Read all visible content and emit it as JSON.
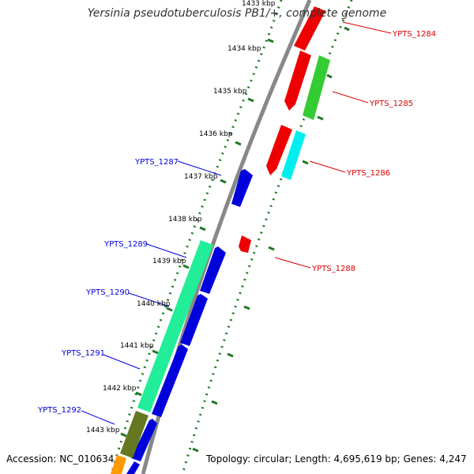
{
  "title": "Yersinia pseudotuberculosis PB1/+, complete genome",
  "footer": {
    "accession": "Accession: NC_010634",
    "stats": "Topology: circular; Length: 4,695,619 bp; Genes: 4,247"
  },
  "kbp_ticks": [
    "1433 kbp",
    "1434 kbp",
    "1435 kbp",
    "1436 kbp",
    "1437 kbp",
    "1438 kbp",
    "1439 kbp",
    "1440 kbp",
    "1441 kbp",
    "1442 kbp",
    "1443 kbp"
  ],
  "genes_reverse": [
    {
      "label": "YPTS_1287",
      "color": "#0000e6"
    },
    {
      "label": "YPTS_1289",
      "color": "#0000e6"
    },
    {
      "label": "YPTS_1290",
      "color": "#0000e6"
    },
    {
      "label": "YPTS_1291",
      "color": "#0000e6"
    },
    {
      "label": "YPTS_1292",
      "color": "#0000e6"
    }
  ],
  "genes_forward": [
    {
      "label": "YPTS_1284",
      "color": "#dd0000"
    },
    {
      "label": "YPTS_1285",
      "color": "#dd0000"
    },
    {
      "label": "YPTS_1286",
      "color": "#dd0000"
    },
    {
      "label": "YPTS_1288",
      "color": "#dd0000"
    }
  ],
  "colors": {
    "forward_cds": "#ee0000",
    "reverse_cds": "#0000dd",
    "cog_green": "#33cc33",
    "cog_cyan": "#00eeee",
    "cog_teal": "#22ee99",
    "cog_olive": "#667722",
    "cog_orange": "#ff9900",
    "backbone": "#888888",
    "ticks": "#227722"
  }
}
